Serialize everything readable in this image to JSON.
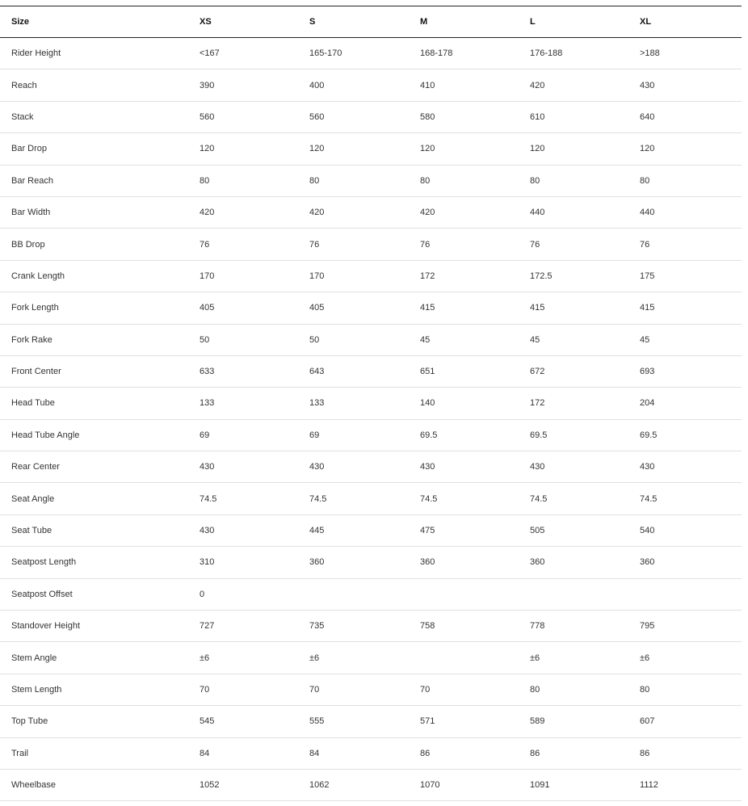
{
  "table": {
    "headers": [
      "Size",
      "XS",
      "S",
      "M",
      "L",
      "XL"
    ],
    "rows": [
      [
        "Rider Height",
        "<167",
        "165-170",
        "168-178",
        "176-188",
        ">188"
      ],
      [
        "Reach",
        "390",
        "400",
        "410",
        "420",
        "430"
      ],
      [
        "Stack",
        "560",
        "560",
        "580",
        "610",
        "640"
      ],
      [
        "Bar Drop",
        "120",
        "120",
        "120",
        "120",
        "120"
      ],
      [
        "Bar Reach",
        "80",
        "80",
        "80",
        "80",
        "80"
      ],
      [
        "Bar Width",
        "420",
        "420",
        "420",
        "440",
        "440"
      ],
      [
        "BB Drop",
        "76",
        "76",
        "76",
        "76",
        "76"
      ],
      [
        "Crank Length",
        "170",
        "170",
        "172",
        "172.5",
        "175"
      ],
      [
        "Fork Length",
        "405",
        "405",
        "415",
        "415",
        "415"
      ],
      [
        "Fork Rake",
        "50",
        "50",
        "45",
        "45",
        "45"
      ],
      [
        "Front Center",
        "633",
        "643",
        "651",
        "672",
        "693"
      ],
      [
        "Head Tube",
        "133",
        "133",
        "140",
        "172",
        "204"
      ],
      [
        "Head Tube Angle",
        "69",
        "69",
        "69.5",
        "69.5",
        "69.5"
      ],
      [
        "Rear Center",
        "430",
        "430",
        "430",
        "430",
        "430"
      ],
      [
        "Seat Angle",
        "74.5",
        "74.5",
        "74.5",
        "74.5",
        "74.5"
      ],
      [
        "Seat Tube",
        "430",
        "445",
        "475",
        "505",
        "540"
      ],
      [
        "Seatpost Length",
        "310",
        "360",
        "360",
        "360",
        "360"
      ],
      [
        "Seatpost Offset",
        "0",
        "",
        "",
        "",
        ""
      ],
      [
        "Standover Height",
        "727",
        "735",
        "758",
        "778",
        "795"
      ],
      [
        "Stem Angle",
        "±6",
        "±6",
        "",
        "±6",
        "±6"
      ],
      [
        "Stem Length",
        "70",
        "70",
        "70",
        "80",
        "80"
      ],
      [
        "Top Tube",
        "545",
        "555",
        "571",
        "589",
        "607"
      ],
      [
        "Trail",
        "84",
        "84",
        "86",
        "86",
        "86"
      ],
      [
        "Wheelbase",
        "1052",
        "1062",
        "1070",
        "1091",
        "1112"
      ]
    ]
  }
}
